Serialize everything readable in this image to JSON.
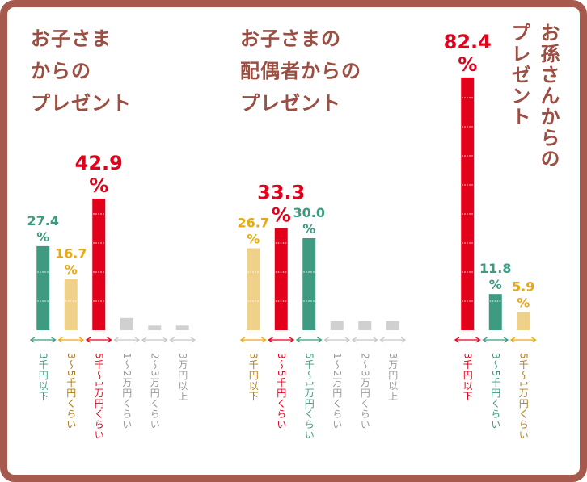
{
  "colors": {
    "frame": "#a65a4d",
    "title": "#9b4f43",
    "red": "#e2001a",
    "teal": "#3f9a82",
    "gold": "#e6a817",
    "sand": "#f0d18a",
    "gray": "#d0d0d0",
    "graytext": "#9a9a9a",
    "goldtext": "#b07d1a"
  },
  "panels": [
    {
      "title_lines": [
        "お子さま",
        "からの",
        "プレゼント"
      ]
    },
    {
      "title_lines": [
        "お子さまの",
        "配偶者からの",
        "プレゼント"
      ]
    },
    {
      "title_lines": [
        "お孫さんからの",
        "プレゼント"
      ]
    }
  ],
  "chart_data": [
    {
      "type": "bar",
      "title": "お子さまからのプレゼント",
      "categories": [
        "3千円以下",
        "3～5千円くらい",
        "5千～1万円くらい",
        "1～2万円くらい",
        "2～3万円くらい",
        "3万円以上"
      ],
      "values": [
        27.4,
        16.7,
        42.9,
        4.0,
        1.5,
        1.5
      ],
      "value_labels": [
        "27.4",
        "16.7",
        "42.9",
        null,
        null,
        null
      ],
      "unit": "%",
      "colors": [
        "#3f9a82",
        "#f0d18a",
        "#e2001a",
        "#d0d0d0",
        "#d0d0d0",
        "#d0d0d0"
      ],
      "label_colors": [
        "#3f9a82",
        "#e6a817",
        "#e2001a",
        "#9a9a9a",
        "#9a9a9a",
        "#9a9a9a"
      ],
      "category_colors": [
        "#3f9a82",
        "#b07d1a",
        "#e2001a",
        "#9a9a9a",
        "#9a9a9a",
        "#9a9a9a"
      ]
    },
    {
      "type": "bar",
      "title": "お子さまの配偶者からのプレゼント",
      "categories": [
        "3千円以下",
        "3～5千円くらい",
        "5千～1万円くらい",
        "1～2万円くらい",
        "2～3万円くらい",
        "3万円以上"
      ],
      "values": [
        26.7,
        33.3,
        30.0,
        3.0,
        3.0,
        3.0
      ],
      "value_labels": [
        "26.7",
        "33.3",
        "30.0",
        null,
        null,
        null
      ],
      "unit": "%",
      "colors": [
        "#f0d18a",
        "#e2001a",
        "#3f9a82",
        "#d0d0d0",
        "#d0d0d0",
        "#d0d0d0"
      ],
      "label_colors": [
        "#e6a817",
        "#e2001a",
        "#3f9a82",
        "#9a9a9a",
        "#9a9a9a",
        "#9a9a9a"
      ],
      "category_colors": [
        "#b07d1a",
        "#e2001a",
        "#3f9a82",
        "#9a9a9a",
        "#9a9a9a",
        "#9a9a9a"
      ]
    },
    {
      "type": "bar",
      "title": "お孫さんからのプレゼント",
      "categories": [
        "3千円以下",
        "3～5千円くらい",
        "5千～1万円くらい"
      ],
      "values": [
        82.4,
        11.8,
        5.9
      ],
      "value_labels": [
        "82.4",
        "11.8",
        "5.9"
      ],
      "unit": "%",
      "colors": [
        "#e2001a",
        "#3f9a82",
        "#f0d18a"
      ],
      "label_colors": [
        "#e2001a",
        "#3f9a82",
        "#e6a817"
      ],
      "category_colors": [
        "#e2001a",
        "#3f9a82",
        "#b07d1a"
      ]
    }
  ]
}
